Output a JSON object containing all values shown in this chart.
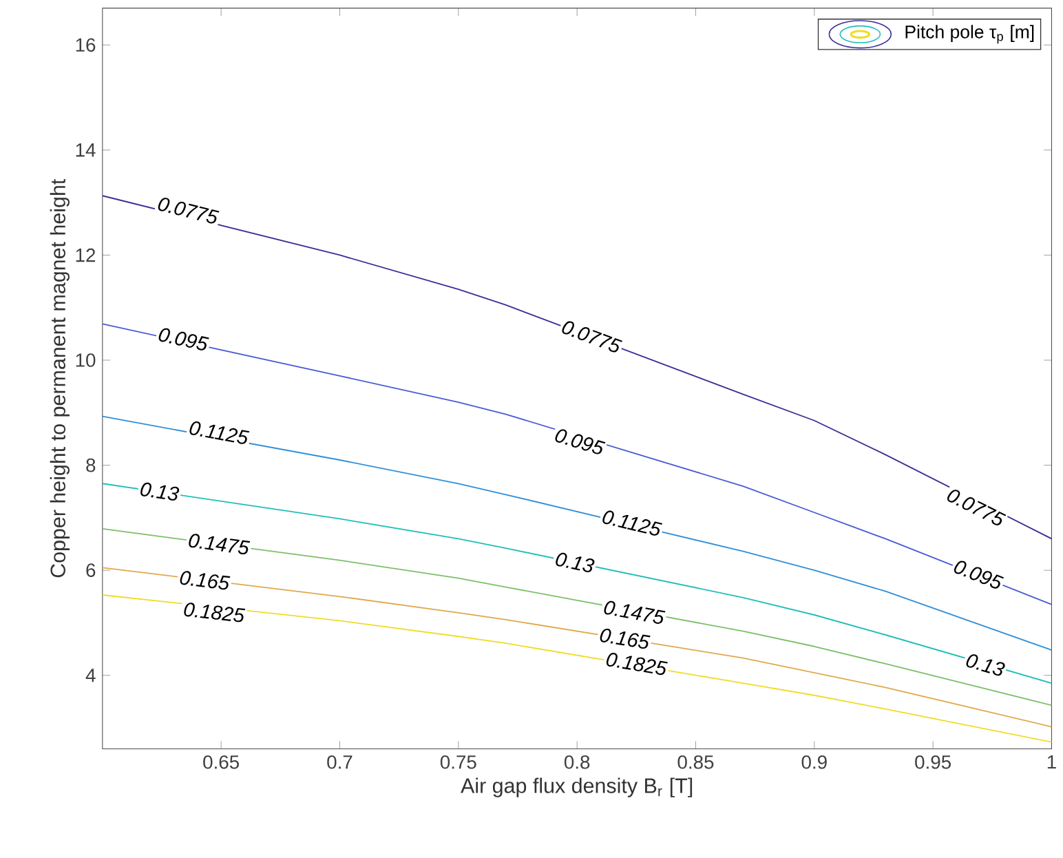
{
  "chart_data": {
    "type": "line",
    "xlabel": "Air gap flux density B$_{r}$ [T]",
    "ylabel": "Copper height to permanent magnet height",
    "legend_title": "Pitch pole τ$_{p}$ [m]",
    "x": [
      0.6,
      0.7,
      0.75,
      0.77,
      0.87,
      0.9,
      0.93,
      1.0
    ],
    "series": [
      {
        "color": "#3b2e96",
        "values": [
          13.13,
          12.0,
          11.35,
          11.05,
          9.35,
          8.85,
          8.2,
          6.6
        ]
      },
      {
        "color": "#4a5ad6",
        "values": [
          10.69,
          9.7,
          9.2,
          8.97,
          7.6,
          7.1,
          6.6,
          5.35
        ]
      },
      {
        "color": "#2f8fd9",
        "values": [
          8.93,
          8.1,
          7.65,
          7.44,
          6.36,
          6.0,
          5.6,
          4.48
        ]
      },
      {
        "color": "#1fbfb8",
        "values": [
          7.65,
          6.98,
          6.6,
          6.42,
          5.48,
          5.15,
          4.77,
          3.85
        ]
      },
      {
        "color": "#7cbf6a",
        "values": [
          6.79,
          6.19,
          5.85,
          5.68,
          4.84,
          4.55,
          4.22,
          3.43
        ]
      },
      {
        "color": "#e0a84c",
        "values": [
          6.05,
          5.5,
          5.19,
          5.06,
          4.33,
          4.05,
          3.77,
          3.02
        ]
      },
      {
        "color": "#f0dc28",
        "values": [
          5.53,
          5.04,
          4.74,
          4.61,
          3.85,
          3.62,
          3.36,
          2.73
        ]
      }
    ],
    "annotations": [
      {
        "text": "0.0775",
        "x": 0.636,
        "y": 12.85
      },
      {
        "text": "0.0775",
        "x": 0.806,
        "y": 10.45
      },
      {
        "text": "0.0775",
        "x": 0.968,
        "y": 7.2
      },
      {
        "text": "0.095",
        "x": 0.634,
        "y": 10.4
      },
      {
        "text": "0.095",
        "x": 0.801,
        "y": 8.45
      },
      {
        "text": "0.095",
        "x": 0.969,
        "y": 5.92
      },
      {
        "text": "0.1125",
        "x": 0.649,
        "y": 8.62
      },
      {
        "text": "0.1125",
        "x": 0.823,
        "y": 6.9
      },
      {
        "text": "0.13",
        "x": 0.624,
        "y": 7.5
      },
      {
        "text": "0.13",
        "x": 0.799,
        "y": 6.15
      },
      {
        "text": "0.13",
        "x": 0.972,
        "y": 4.2
      },
      {
        "text": "0.1475",
        "x": 0.649,
        "y": 6.5
      },
      {
        "text": "0.1475",
        "x": 0.824,
        "y": 5.2
      },
      {
        "text": "0.165",
        "x": 0.643,
        "y": 5.81
      },
      {
        "text": "0.165",
        "x": 0.82,
        "y": 4.7
      },
      {
        "text": "0.1825",
        "x": 0.647,
        "y": 5.2
      },
      {
        "text": "0.1825",
        "x": 0.825,
        "y": 4.22
      }
    ],
    "xlim": [
      0.6,
      1.0
    ],
    "ylim": [
      2.6,
      16.7
    ],
    "xticks": [
      0.65,
      0.7,
      0.75,
      0.8,
      0.85,
      0.9,
      0.95,
      1
    ],
    "yticks": [
      4,
      6,
      8,
      10,
      12,
      14,
      16
    ],
    "grid": false,
    "marker": "none",
    "line_style": "solid"
  }
}
